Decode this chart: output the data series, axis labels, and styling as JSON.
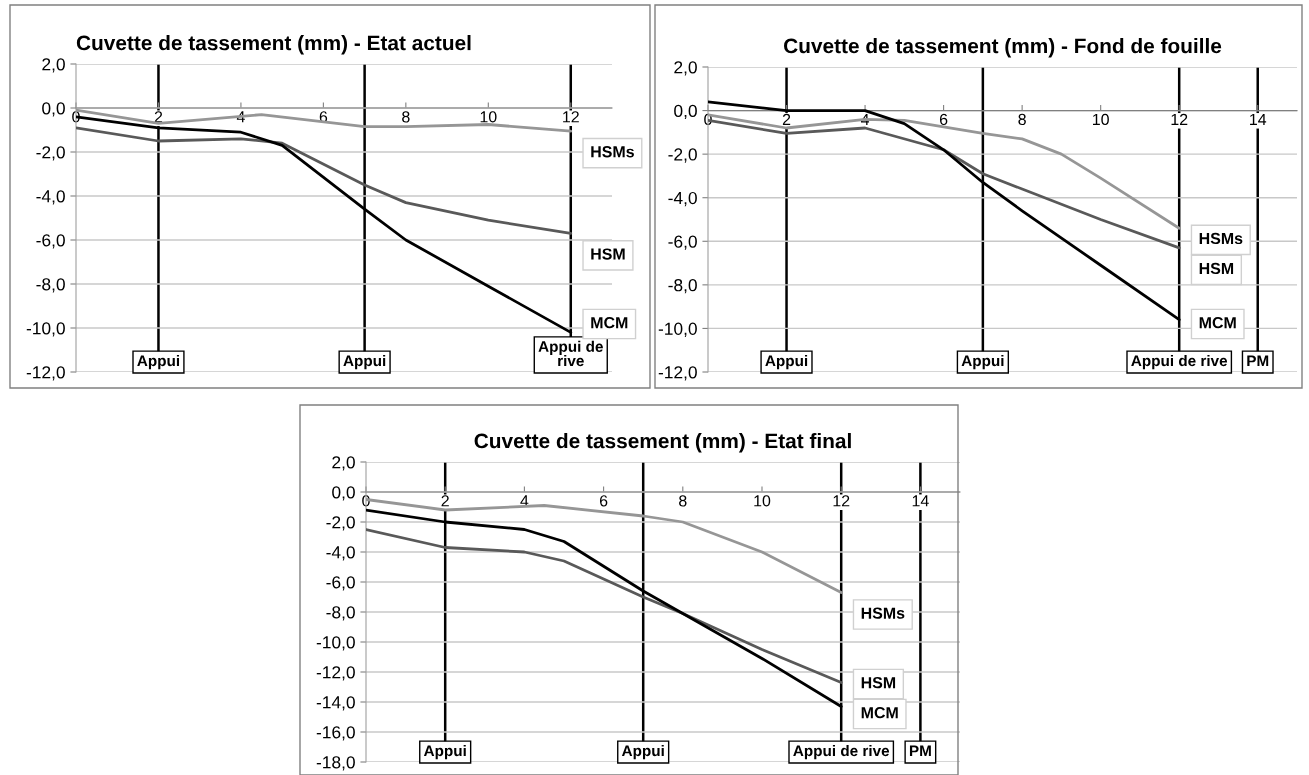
{
  "chart_data": [
    {
      "type": "line",
      "title": "Cuvette de tassement (mm) - Etat actuel",
      "xlim": [
        0,
        13
      ],
      "xticks": [
        0,
        2,
        4,
        6,
        8,
        10,
        12
      ],
      "ylim": [
        -12,
        2
      ],
      "yticks": [
        {
          "value": 2,
          "label": "2,0"
        },
        {
          "value": 0,
          "label": "0,0"
        },
        {
          "value": -2,
          "label": "-2,0"
        },
        {
          "value": -4,
          "label": "-4,0"
        },
        {
          "value": -6,
          "label": "-6,0"
        },
        {
          "value": -8,
          "label": "-8,0"
        },
        {
          "value": -10,
          "label": "-10,0"
        },
        {
          "value": -12,
          "label": "-12,0"
        }
      ],
      "grid": "y",
      "legend": false,
      "marker": "none",
      "line_style": "solid",
      "series": [
        {
          "name": "HSMs",
          "color": "#969696",
          "x": [
            0,
            2,
            4.5,
            7,
            8,
            10,
            12
          ],
          "values": [
            -0.1,
            -0.7,
            -0.3,
            -0.85,
            -0.85,
            -0.75,
            -1.05
          ]
        },
        {
          "name": "HSM",
          "color": "#595959",
          "x": [
            0,
            2,
            4,
            5,
            7,
            8,
            10,
            12
          ],
          "values": [
            -0.9,
            -1.5,
            -1.4,
            -1.6,
            -3.5,
            -4.3,
            -5.1,
            -5.7
          ]
        },
        {
          "name": "MCM",
          "color": "#000000",
          "x": [
            0,
            2,
            4,
            5,
            7,
            8,
            10,
            12
          ],
          "values": [
            -0.4,
            -0.9,
            -1.1,
            -1.7,
            -4.6,
            -6.0,
            -8.1,
            -10.2
          ]
        }
      ],
      "ref_lines": [
        {
          "axis": "x",
          "value": 2,
          "label": "Appui",
          "color": "#000000"
        },
        {
          "axis": "x",
          "value": 7,
          "label": "Appui",
          "color": "#000000"
        },
        {
          "axis": "x",
          "value": 12,
          "label": "Appui de\nrive",
          "color": "#000000"
        }
      ]
    },
    {
      "type": "line",
      "title": "Cuvette de tassement (mm) - Fond de fouille",
      "xlim": [
        0,
        15
      ],
      "xticks": [
        0,
        2,
        4,
        6,
        8,
        10,
        12,
        14
      ],
      "ylim": [
        -12,
        2
      ],
      "yticks": [
        {
          "value": 2,
          "label": "2,0"
        },
        {
          "value": 0,
          "label": "0,0"
        },
        {
          "value": -2,
          "label": "-2,0"
        },
        {
          "value": -4,
          "label": "-4,0"
        },
        {
          "value": -6,
          "label": "-6,0"
        },
        {
          "value": -8,
          "label": "-8,0"
        },
        {
          "value": -10,
          "label": "-10,0"
        },
        {
          "value": -12,
          "label": "-12,0"
        }
      ],
      "grid": "y",
      "legend": false,
      "marker": "none",
      "line_style": "solid",
      "series": [
        {
          "name": "HSMs",
          "color": "#969696",
          "x": [
            0,
            2,
            4,
            5,
            7,
            8,
            9,
            10,
            12
          ],
          "values": [
            -0.2,
            -0.8,
            -0.4,
            -0.45,
            -1.05,
            -1.3,
            -2.0,
            -3.1,
            -5.4
          ]
        },
        {
          "name": "HSM",
          "color": "#595959",
          "x": [
            0,
            2,
            4,
            6,
            7,
            8,
            10,
            12
          ],
          "values": [
            -0.45,
            -1.05,
            -0.8,
            -1.8,
            -2.9,
            -3.6,
            -5.0,
            -6.3
          ]
        },
        {
          "name": "MCM",
          "color": "#000000",
          "x": [
            0,
            2,
            4,
            5,
            6,
            7,
            8,
            10,
            12
          ],
          "values": [
            0.4,
            0.0,
            0.0,
            -0.6,
            -1.8,
            -3.3,
            -4.6,
            -7.1,
            -9.6
          ]
        }
      ],
      "ref_lines": [
        {
          "axis": "x",
          "value": 2,
          "label": "Appui",
          "color": "#000000"
        },
        {
          "axis": "x",
          "value": 7,
          "label": "Appui",
          "color": "#000000"
        },
        {
          "axis": "x",
          "value": 12,
          "label": "Appui de rive",
          "color": "#000000"
        },
        {
          "axis": "x",
          "value": 14,
          "label": "PM",
          "color": "#000000"
        }
      ]
    },
    {
      "type": "line",
      "title": "Cuvette de tassement (mm) - Etat final",
      "xlim": [
        0,
        15
      ],
      "xticks": [
        0,
        2,
        4,
        6,
        8,
        10,
        12,
        14
      ],
      "ylim": [
        -18,
        2
      ],
      "yticks": [
        {
          "value": 2,
          "label": "2,0"
        },
        {
          "value": 0,
          "label": "0,0"
        },
        {
          "value": -2,
          "label": "-2,0"
        },
        {
          "value": -4,
          "label": "-4,0"
        },
        {
          "value": -6,
          "label": "-6,0"
        },
        {
          "value": -8,
          "label": "-8,0"
        },
        {
          "value": -10,
          "label": "-10,0"
        },
        {
          "value": -12,
          "label": "-12,0"
        },
        {
          "value": -14,
          "label": "-14,0"
        },
        {
          "value": -16,
          "label": "-16,0"
        },
        {
          "value": -18,
          "label": "-18,0"
        }
      ],
      "grid": "y",
      "legend": false,
      "marker": "none",
      "line_style": "solid",
      "series": [
        {
          "name": "HSMs",
          "color": "#969696",
          "x": [
            0,
            2,
            4.5,
            7,
            8,
            10,
            12
          ],
          "values": [
            -0.5,
            -1.2,
            -0.9,
            -1.6,
            -2.0,
            -4.0,
            -6.7
          ]
        },
        {
          "name": "HSM",
          "color": "#595959",
          "x": [
            0,
            2,
            4,
            5,
            7,
            8,
            10,
            12
          ],
          "values": [
            -2.5,
            -3.7,
            -4.0,
            -4.6,
            -7.0,
            -8.1,
            -10.5,
            -12.7
          ]
        },
        {
          "name": "MCM",
          "color": "#000000",
          "x": [
            0,
            2,
            4,
            5,
            7,
            8,
            10,
            12
          ],
          "values": [
            -1.2,
            -2.0,
            -2.5,
            -3.3,
            -6.6,
            -8.1,
            -11.1,
            -14.3
          ]
        }
      ],
      "ref_lines": [
        {
          "axis": "x",
          "value": 2,
          "label": "Appui",
          "color": "#000000"
        },
        {
          "axis": "x",
          "value": 7,
          "label": "Appui",
          "color": "#000000"
        },
        {
          "axis": "x",
          "value": 12,
          "label": "Appui de rive",
          "color": "#000000"
        },
        {
          "axis": "x",
          "value": 14,
          "label": "PM",
          "color": "#000000"
        }
      ]
    }
  ]
}
